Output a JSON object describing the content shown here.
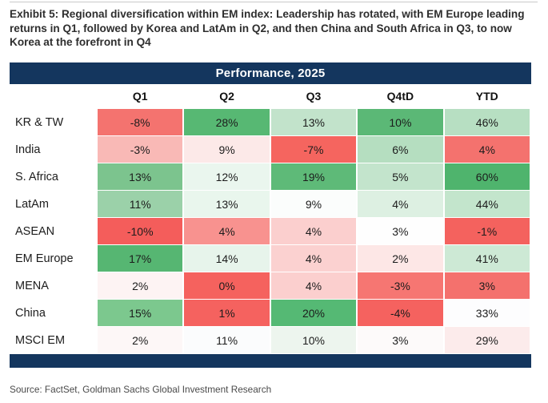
{
  "exhibit": {
    "title": "Exhibit 5: Regional diversification within EM index: Leadership has rotated, with EM Europe leading returns in Q1, followed by Korea and LatAm in Q2, and then China and South Africa in Q3, to now Korea at the forefront in Q4",
    "source": "Source: FactSet, Goldman Sachs Global Investment Research"
  },
  "colors": {
    "titlebar_bg": "#14365e",
    "titlebar_text": "#ffffff",
    "positive_strong": "#4fb46d",
    "negative_strong": "#f4625e",
    "neutral": "#ffffff"
  },
  "table": {
    "header": "Performance, 2025",
    "columns": [
      "Q1",
      "Q2",
      "Q3",
      "Q4tD",
      "YTD"
    ],
    "rows": [
      {
        "label": "KR & TW",
        "cells": [
          {
            "value": "-8%",
            "bg": "#F4736F"
          },
          {
            "value": "28%",
            "bg": "#57B873"
          },
          {
            "value": "13%",
            "bg": "#C2E3CB"
          },
          {
            "value": "10%",
            "bg": "#5BB876"
          },
          {
            "value": "46%",
            "bg": "#B7DFC2"
          }
        ]
      },
      {
        "label": "India",
        "cells": [
          {
            "value": "-3%",
            "bg": "#F9B9B6"
          },
          {
            "value": "9%",
            "bg": "#FCE9E8"
          },
          {
            "value": "-7%",
            "bg": "#F5655F"
          },
          {
            "value": "6%",
            "bg": "#B5DEC0"
          },
          {
            "value": "4%",
            "bg": "#F4726E"
          }
        ]
      },
      {
        "label": "S. Africa",
        "cells": [
          {
            "value": "13%",
            "bg": "#7CC48E"
          },
          {
            "value": "12%",
            "bg": "#EAF6EE"
          },
          {
            "value": "19%",
            "bg": "#5EBA78"
          },
          {
            "value": "5%",
            "bg": "#C3E4CC"
          },
          {
            "value": "60%",
            "bg": "#4FB46D"
          }
        ]
      },
      {
        "label": "LatAm",
        "cells": [
          {
            "value": "11%",
            "bg": "#9BD1A9"
          },
          {
            "value": "13%",
            "bg": "#E9F6ED"
          },
          {
            "value": "9%",
            "bg": "#FBFDFC"
          },
          {
            "value": "4%",
            "bg": "#DDF0E2"
          },
          {
            "value": "44%",
            "bg": "#C3E5CC"
          }
        ]
      },
      {
        "label": "ASEAN",
        "cells": [
          {
            "value": "-10%",
            "bg": "#F45D5B"
          },
          {
            "value": "4%",
            "bg": "#F8928F"
          },
          {
            "value": "4%",
            "bg": "#FBCFCE"
          },
          {
            "value": "3%",
            "bg": "#FEFEFE"
          },
          {
            "value": "-1%",
            "bg": "#F4625E"
          }
        ]
      },
      {
        "label": "EM Europe",
        "cells": [
          {
            "value": "17%",
            "bg": "#56B672"
          },
          {
            "value": "14%",
            "bg": "#E7F4EB"
          },
          {
            "value": "4%",
            "bg": "#FBD1D0"
          },
          {
            "value": "2%",
            "bg": "#FDE7E6"
          },
          {
            "value": "41%",
            "bg": "#CDE9D5"
          }
        ]
      },
      {
        "label": "MENA",
        "cells": [
          {
            "value": "2%",
            "bg": "#FDF3F3"
          },
          {
            "value": "0%",
            "bg": "#F5625E"
          },
          {
            "value": "4%",
            "bg": "#FBCFCE"
          },
          {
            "value": "-3%",
            "bg": "#F67672"
          },
          {
            "value": "3%",
            "bg": "#F4716D"
          }
        ]
      },
      {
        "label": "China",
        "cells": [
          {
            "value": "15%",
            "bg": "#7CC88E"
          },
          {
            "value": "1%",
            "bg": "#F5625F"
          },
          {
            "value": "20%",
            "bg": "#55B974"
          },
          {
            "value": "-4%",
            "bg": "#F5625F"
          },
          {
            "value": "33%",
            "bg": "#FDFDFE"
          }
        ]
      },
      {
        "label": "MSCI EM",
        "cells": [
          {
            "value": "2%",
            "bg": "#FDF7F7"
          },
          {
            "value": "11%",
            "bg": "#FBFCFD"
          },
          {
            "value": "10%",
            "bg": "#EDF5EE"
          },
          {
            "value": "3%",
            "bg": "#FDFAFA"
          },
          {
            "value": "29%",
            "bg": "#FCEBEB"
          }
        ]
      }
    ]
  },
  "chart_data": {
    "type": "heatmap",
    "title": "Performance, 2025",
    "rows": [
      "KR & TW",
      "India",
      "S. Africa",
      "LatAm",
      "ASEAN",
      "EM Europe",
      "MENA",
      "China",
      "MSCI EM"
    ],
    "columns": [
      "Q1",
      "Q2",
      "Q3",
      "Q4tD",
      "YTD"
    ],
    "values_pct": [
      [
        -8,
        28,
        13,
        10,
        46
      ],
      [
        -3,
        9,
        -7,
        6,
        4
      ],
      [
        13,
        12,
        19,
        5,
        60
      ],
      [
        11,
        13,
        9,
        4,
        44
      ],
      [
        -10,
        4,
        4,
        3,
        -1
      ],
      [
        17,
        14,
        4,
        2,
        41
      ],
      [
        2,
        0,
        4,
        -3,
        3
      ],
      [
        15,
        1,
        20,
        -4,
        33
      ],
      [
        2,
        11,
        10,
        3,
        29
      ]
    ],
    "color_scale": "diverging red-white-green, shaded per column (low=red, high=green)",
    "legend": "none",
    "grid": false
  }
}
